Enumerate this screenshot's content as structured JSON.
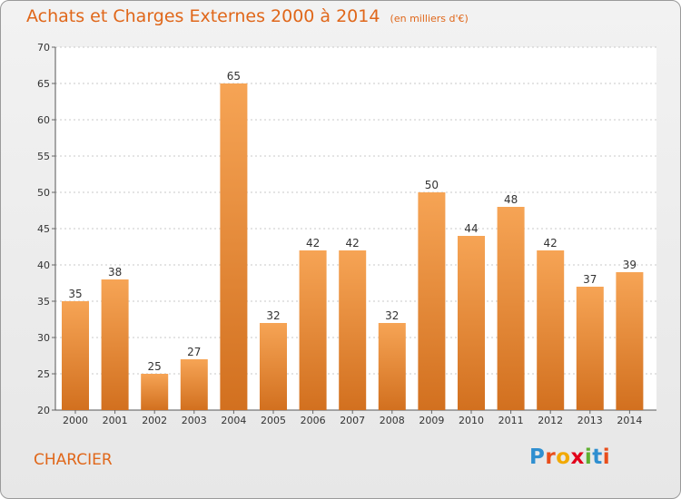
{
  "header": {
    "title": "Achats et Charges Externes 2000 à 2014",
    "unit_note": "(en milliers d'€)"
  },
  "footer": {
    "commune": "CHARCIER",
    "logo": {
      "letters": [
        "P",
        "r",
        "o",
        "x",
        "i",
        "t",
        "i"
      ],
      "colors": [
        "#2f8fd0",
        "#e94e1b",
        "#f2a900",
        "#e2001a",
        "#5fb030",
        "#2f8fd0",
        "#e94e1b"
      ]
    }
  },
  "colors": {
    "accent": "#e0671a",
    "bar_light": "#f6a455",
    "bar_dark": "#d2701f",
    "grid": "#c8c8c8"
  },
  "chart_data": {
    "type": "bar",
    "title": "Achats et Charges Externes 2000 à 2014",
    "subtitle": "(en milliers d'€)",
    "categories": [
      "2000",
      "2001",
      "2002",
      "2003",
      "2004",
      "2005",
      "2006",
      "2007",
      "2008",
      "2009",
      "2010",
      "2011",
      "2012",
      "2013",
      "2014"
    ],
    "values": [
      35,
      38,
      25,
      27,
      65,
      32,
      42,
      42,
      32,
      50,
      44,
      48,
      42,
      37,
      39
    ],
    "ylim": [
      20,
      70
    ],
    "yticks": [
      20,
      25,
      30,
      35,
      40,
      45,
      50,
      55,
      60,
      65,
      70
    ],
    "grid": true,
    "xlabel": "",
    "ylabel": ""
  }
}
